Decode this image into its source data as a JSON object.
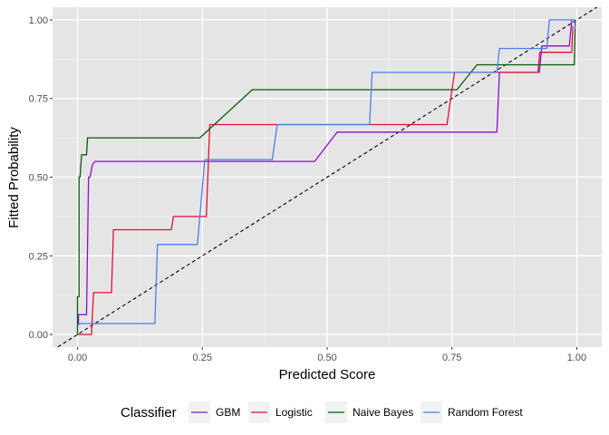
{
  "chart_data": {
    "type": "line",
    "title": "",
    "xlabel": "Predicted Score",
    "ylabel": "Fitted Probability",
    "xlim": [
      -0.05,
      1.05
    ],
    "ylim": [
      -0.04,
      1.04
    ],
    "x_ticks": [
      0,
      0.25,
      0.5,
      0.75,
      1
    ],
    "x_tick_labels": [
      "0.00",
      "0.25",
      "0.50",
      "0.75",
      "1.00"
    ],
    "y_ticks": [
      0,
      0.25,
      0.5,
      0.75,
      1
    ],
    "y_tick_labels": [
      "0.00",
      "0.25",
      "0.50",
      "0.75",
      "1.00"
    ],
    "grid": true,
    "panel_background": "#e5e5e5",
    "reference_line": {
      "style": "dashed",
      "color": "#000000",
      "x": [
        -0.05,
        1.05
      ],
      "y": [
        -0.05,
        1.05
      ]
    },
    "legend": {
      "title": "Classifier",
      "position": "bottom"
    },
    "series": [
      {
        "name": "GBM",
        "color": "#8b0fd0",
        "x": [
          0.0,
          0.002,
          0.002,
          0.018,
          0.022,
          0.025,
          0.03,
          0.035,
          0.475,
          0.52,
          0.84,
          0.845,
          0.925,
          0.93,
          0.985,
          0.99
        ],
        "y": [
          0.03,
          0.03,
          0.063,
          0.063,
          0.5,
          0.5,
          0.54,
          0.55,
          0.55,
          0.643,
          0.643,
          0.833,
          0.833,
          0.917,
          0.917,
          1.0
        ]
      },
      {
        "name": "Logistic",
        "color": "#e0103a",
        "x": [
          0.0,
          0.005,
          0.008,
          0.028,
          0.032,
          0.068,
          0.072,
          0.188,
          0.192,
          0.258,
          0.265,
          0.74,
          0.755,
          0.922,
          0.926,
          0.99,
          0.992
        ],
        "y": [
          0.0,
          0.0,
          0.0,
          0.0,
          0.133,
          0.133,
          0.333,
          0.333,
          0.375,
          0.375,
          0.667,
          0.667,
          0.833,
          0.833,
          0.897,
          0.897,
          0.98
        ]
      },
      {
        "name": "Naive Bayes",
        "color": "#0a5a0a",
        "x": [
          0.0,
          0.0,
          0.003,
          0.003,
          0.005,
          0.008,
          0.012,
          0.018,
          0.02,
          0.245,
          0.35,
          0.76,
          0.8,
          0.995,
          0.997
        ],
        "y": [
          0.0,
          0.12,
          0.12,
          0.5,
          0.5,
          0.571,
          0.571,
          0.571,
          0.625,
          0.625,
          0.778,
          0.778,
          0.857,
          0.857,
          1.0
        ]
      },
      {
        "name": "Random Forest",
        "color": "#4a80e8",
        "x": [
          0.0,
          0.005,
          0.155,
          0.16,
          0.24,
          0.255,
          0.39,
          0.4,
          0.585,
          0.59,
          0.84,
          0.845,
          0.94,
          0.945,
          0.995,
          0.997
        ],
        "y": [
          0.03,
          0.035,
          0.035,
          0.286,
          0.286,
          0.556,
          0.556,
          0.667,
          0.667,
          0.833,
          0.833,
          0.909,
          0.909,
          1.0,
          1.0,
          0.97
        ]
      }
    ]
  }
}
